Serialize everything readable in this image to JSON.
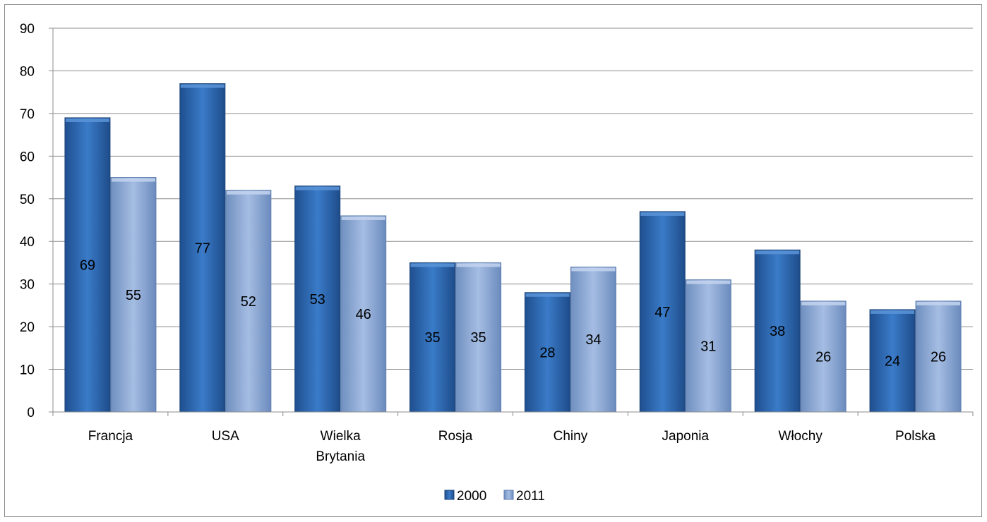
{
  "chart_data": {
    "type": "bar",
    "title": "",
    "xlabel": "",
    "ylabel": "",
    "ylim": [
      0,
      90
    ],
    "yticks": [
      0,
      10,
      20,
      30,
      40,
      50,
      60,
      70,
      80,
      90
    ],
    "grid": true,
    "legend_position": "bottom",
    "categories": [
      [
        "Francja"
      ],
      [
        "USA"
      ],
      [
        "Wielka",
        "Brytania"
      ],
      [
        "Rosja"
      ],
      [
        "Chiny"
      ],
      [
        "Japonia"
      ],
      [
        "Włochy"
      ],
      [
        "Polska"
      ]
    ],
    "series": [
      {
        "name": "2000",
        "color": "#2f6db5",
        "values": [
          69,
          77,
          53,
          35,
          28,
          47,
          38,
          24
        ]
      },
      {
        "name": "2011",
        "color": "#8eaadb",
        "values": [
          55,
          52,
          46,
          35,
          34,
          31,
          26,
          26
        ]
      }
    ]
  }
}
